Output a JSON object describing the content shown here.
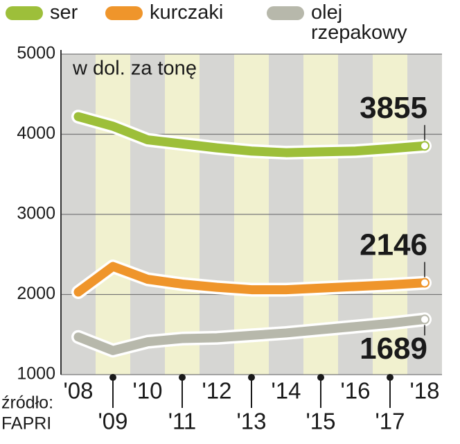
{
  "chart_data": {
    "type": "line",
    "annotation": "w dol. za tonę",
    "source_label": "źródło:",
    "source": "FAPRI",
    "categories": [
      "'08",
      "'09",
      "'10",
      "'11",
      "'12",
      "'13",
      "'14",
      "'15",
      "'16",
      "'17",
      "'18"
    ],
    "series": [
      {
        "name": "ser",
        "color": "#9dbf3a",
        "values": [
          4220,
          4100,
          3930,
          3880,
          3830,
          3790,
          3770,
          3780,
          3790,
          3820,
          3855
        ]
      },
      {
        "name": "kurczaki",
        "color": "#ef952b",
        "values": [
          2030,
          2350,
          2190,
          2130,
          2090,
          2060,
          2060,
          2080,
          2100,
          2120,
          2146
        ]
      },
      {
        "name": "olej rzepakowy",
        "color": "#b7b8ab",
        "values": [
          1470,
          1300,
          1410,
          1450,
          1460,
          1490,
          1520,
          1560,
          1600,
          1640,
          1689
        ]
      }
    ],
    "ylim": [
      1000,
      5000
    ],
    "yticks": [
      1000,
      2000,
      3000,
      4000,
      5000
    ],
    "grid": true
  }
}
